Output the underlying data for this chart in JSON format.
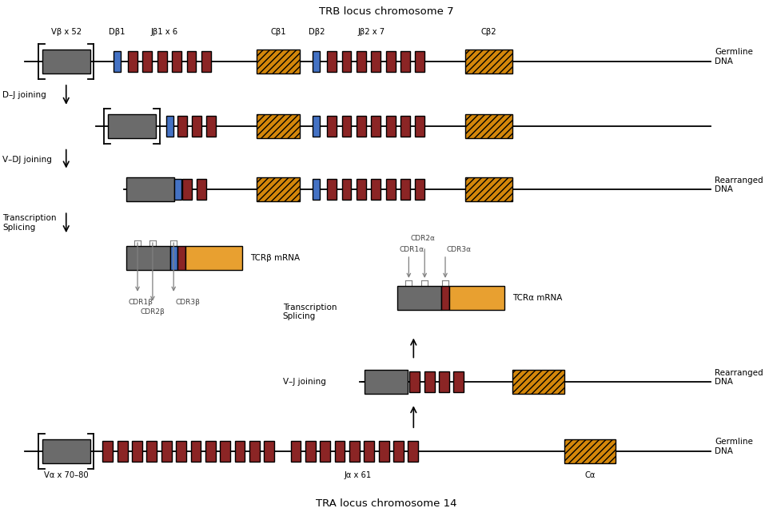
{
  "title_top": "TRB locus chromosome 7",
  "title_bottom": "TRA locus chromosome 14",
  "colors": {
    "V_gray": "#6B6B6B",
    "J_red": "#8B2525",
    "D_blue": "#4472C4",
    "C_orange": "#D4870A",
    "C_orange_solid": "#E8A030",
    "bg": "#FFFFFF"
  },
  "labels": {
    "Vb": "Vβ x 52",
    "Db1": "Dβ1",
    "Jb1": "Jβ1 x 6",
    "Cb1": "Cβ1",
    "Db2": "Dβ2",
    "Jb2": "Jβ2 x 7",
    "Cb2": "Cβ2",
    "Va": "Vα x 70–80",
    "Ja": "Jα x 61",
    "Ca": "Cα",
    "germline_DNA": "Germline\nDNA",
    "rearranged_DNA": "Rearranged\nDNA",
    "DJ_joining": "D–J joining",
    "VDJ_joining": "V–DJ joining",
    "trans_splice": "Transcription\nSplicing",
    "VJ_joining": "V–J joining",
    "TCRb_mRNA": "TCRβ mRNA",
    "TCRa_mRNA": "TCRα mRNA",
    "CDR1b": "CDR1β",
    "CDR2b": "CDR2β",
    "CDR3b": "CDR3β",
    "CDR1a": "CDR1α",
    "CDR2a": "CDR2α",
    "CDR3a": "CDR3α"
  }
}
